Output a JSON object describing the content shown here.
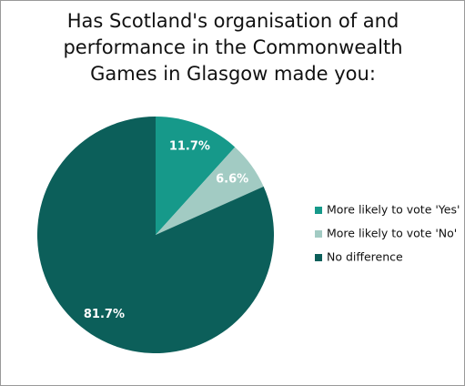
{
  "chart_data": {
    "type": "pie",
    "title": "Has Scotland's organisation of and performance in the Commonwealth Games in Glasgow made you:",
    "categories": [
      "More likely to vote 'Yes'",
      "More likely to vote 'No'",
      "No difference"
    ],
    "values": [
      11.7,
      6.6,
      81.7
    ],
    "value_labels": [
      "11.7%",
      "6.6%",
      "81.7%"
    ],
    "colors": [
      "#16998a",
      "#a2cbc3",
      "#0c5f5a"
    ],
    "legend": "right"
  }
}
